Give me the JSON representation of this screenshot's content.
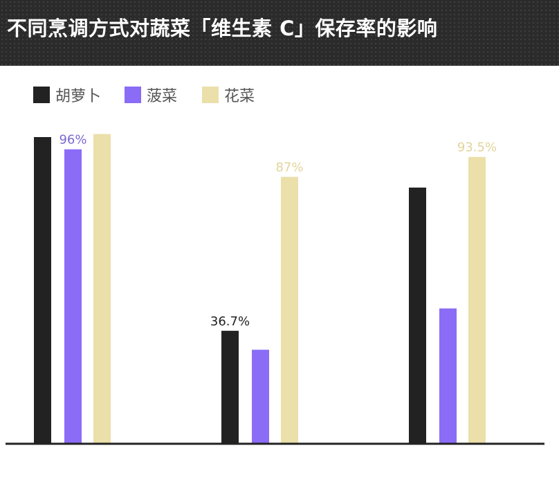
{
  "title": "不同烹调方式对蔬菜「维生素 C」保存率的影响",
  "colors": {
    "header_bg": "#2b2b2b",
    "carrot": "#222222",
    "spinach": "#8a6cf7",
    "cauliflower": "#ebdfaa"
  },
  "chart_data": {
    "type": "bar",
    "title": "不同烹调方式对蔬菜「维生素 C」保存率的影响",
    "categories": [
      "",
      "",
      ""
    ],
    "series": [
      {
        "name": "胡萝卜",
        "color": "#222222",
        "values": [
          100,
          36.7,
          83.5
        ],
        "labels": [
          "",
          "36.7%",
          ""
        ]
      },
      {
        "name": "菠菜",
        "color": "#8a6cf7",
        "values": [
          96,
          30.5,
          44
        ],
        "labels": [
          "96%",
          "",
          ""
        ]
      },
      {
        "name": "花菜",
        "color": "#ebdfaa",
        "values": [
          101,
          87,
          93.5
        ],
        "labels": [
          "",
          "87%",
          "93.5%"
        ]
      }
    ],
    "ylim": [
      0,
      100
    ],
    "unit": "%",
    "legend_position": "top-left",
    "grid": false
  }
}
